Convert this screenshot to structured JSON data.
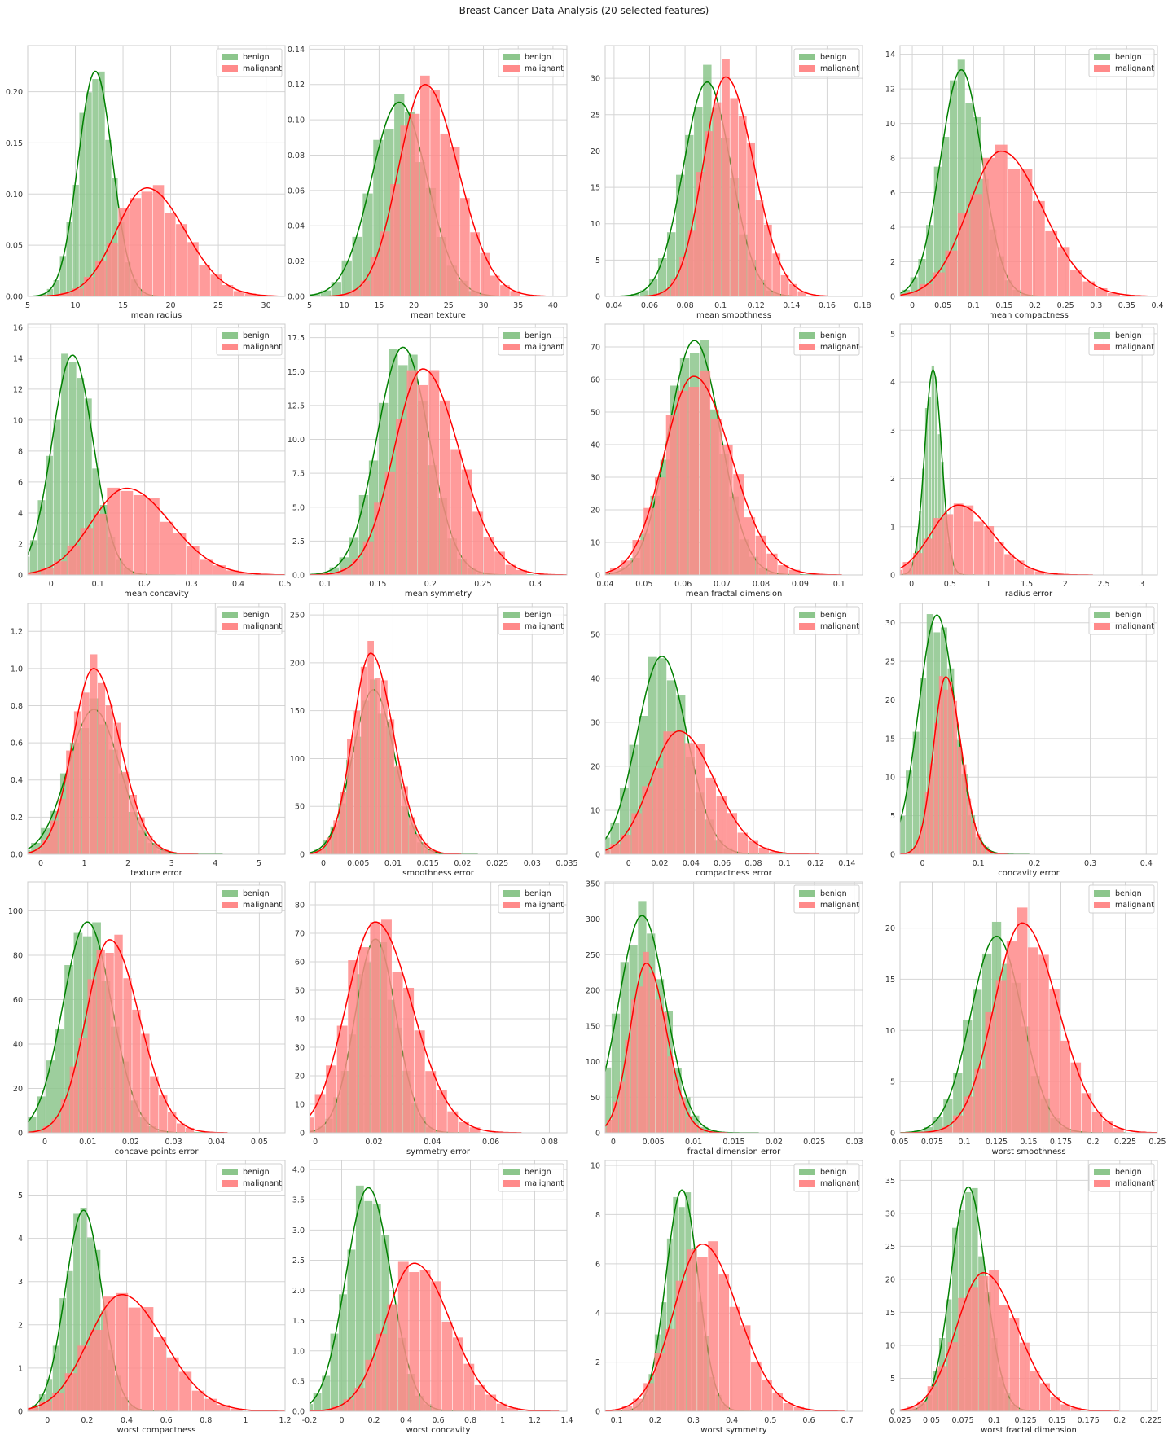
{
  "title": "Breast Cancer Data Analysis (20 selected features)",
  "legend": [
    "benign",
    "malignant"
  ],
  "colors": {
    "benign": "#008000",
    "malignant": "#ff0000",
    "benign_fill": "#8cc68c",
    "malignant_fill": "#ff8a8a",
    "grid": "#d5d5d5",
    "frame": "#cccccc"
  },
  "chart_data": [
    {
      "type": "bar",
      "xlabel": "mean radius",
      "xlim": [
        5,
        32
      ],
      "ylim": [
        0,
        0.245
      ],
      "xticks": [
        5,
        10,
        15,
        20,
        25,
        30
      ],
      "yticks": [
        0,
        0.05,
        0.1,
        0.15,
        0.2
      ],
      "ytick_labels": [
        "0.00",
        "0.05",
        "0.10",
        "0.15",
        "0.20"
      ],
      "legend_position": "top-right",
      "series": [
        {
          "name": "benign",
          "mean": 12.1,
          "sd": 1.8
        },
        {
          "name": "malignant",
          "mean": 17.5,
          "sd": 3.2
        }
      ],
      "peaks": [
        0.22,
        0.106
      ]
    },
    {
      "type": "bar",
      "xlabel": "mean texture",
      "xlim": [
        5,
        42
      ],
      "ylim": [
        0,
        0.142
      ],
      "xticks": [
        5,
        10,
        15,
        20,
        25,
        30,
        35,
        40
      ],
      "yticks": [
        0,
        0.02,
        0.04,
        0.06,
        0.08,
        0.1,
        0.12,
        0.14
      ],
      "ytick_labels": [
        "0.00",
        "0.02",
        "0.04",
        "0.06",
        "0.08",
        "0.10",
        "0.12",
        "0.14"
      ],
      "legend_position": "top-right",
      "series": [
        {
          "name": "benign",
          "mean": 17.9,
          "sd": 4.0
        },
        {
          "name": "malignant",
          "mean": 21.6,
          "sd": 3.8
        }
      ],
      "peaks": [
        0.11,
        0.12
      ]
    },
    {
      "type": "bar",
      "xlabel": "mean smoothness",
      "xlim": [
        0.035,
        0.18
      ],
      "ylim": [
        0,
        34.5
      ],
      "xticks": [
        0.04,
        0.06,
        0.08,
        0.1,
        0.12,
        0.14,
        0.16,
        0.18
      ],
      "yticks": [
        0,
        5,
        10,
        15,
        20,
        25,
        30
      ],
      "ytick_labels": [
        "0",
        "5",
        "10",
        "15",
        "20",
        "25",
        "30"
      ],
      "legend_position": "top-right",
      "series": [
        {
          "name": "benign",
          "mean": 0.0925,
          "sd": 0.0134
        },
        {
          "name": "malignant",
          "mean": 0.1029,
          "sd": 0.0126
        }
      ],
      "peaks": [
        29.5,
        30.2
      ]
    },
    {
      "type": "bar",
      "xlabel": "mean compactness",
      "xlim": [
        -0.02,
        0.4
      ],
      "ylim": [
        0,
        14.5
      ],
      "xticks": [
        0,
        0.05,
        0.1,
        0.15,
        0.2,
        0.25,
        0.3,
        0.35,
        0.4
      ],
      "yticks": [
        0,
        2,
        4,
        6,
        8,
        10,
        12,
        14
      ],
      "ytick_labels": [
        "0",
        "2",
        "4",
        "6",
        "8",
        "10",
        "12",
        "14"
      ],
      "legend_position": "top-right",
      "series": [
        {
          "name": "benign",
          "mean": 0.08,
          "sd": 0.034
        },
        {
          "name": "malignant",
          "mean": 0.145,
          "sd": 0.054
        }
      ],
      "peaks": [
        13.1,
        8.4
      ]
    },
    {
      "type": "bar",
      "xlabel": "mean concavity",
      "xlim": [
        -0.05,
        0.5
      ],
      "ylim": [
        0,
        16.2
      ],
      "xticks": [
        0,
        0.1,
        0.2,
        0.3,
        0.4,
        0.5
      ],
      "yticks": [
        0,
        2,
        4,
        6,
        8,
        10,
        12,
        14,
        16
      ],
      "ytick_labels": [
        "0",
        "2",
        "4",
        "6",
        "8",
        "10",
        "12",
        "14",
        "16"
      ],
      "legend_position": "top-right",
      "series": [
        {
          "name": "benign",
          "mean": 0.046,
          "sd": 0.044
        },
        {
          "name": "malignant",
          "mean": 0.161,
          "sd": 0.075
        }
      ],
      "peaks": [
        14.2,
        5.6
      ]
    },
    {
      "type": "bar",
      "xlabel": "mean symmetry",
      "xlim": [
        0.085,
        0.33
      ],
      "ylim": [
        0,
        18.5
      ],
      "xticks": [
        0.1,
        0.15,
        0.2,
        0.25,
        0.3
      ],
      "yticks": [
        0,
        2.5,
        5.0,
        7.5,
        10.0,
        12.5,
        15.0,
        17.5
      ],
      "ytick_labels": [
        "0.0",
        "2.5",
        "5.0",
        "7.5",
        "10.0",
        "12.5",
        "15.0",
        "17.5"
      ],
      "legend_position": "top-right",
      "series": [
        {
          "name": "benign",
          "mean": 0.174,
          "sd": 0.0248
        },
        {
          "name": "malignant",
          "mean": 0.193,
          "sd": 0.0276
        }
      ],
      "peaks": [
        16.8,
        15.2
      ]
    },
    {
      "type": "bar",
      "xlabel": "mean fractal dimension",
      "xlim": [
        0.04,
        0.106
      ],
      "ylim": [
        0,
        77
      ],
      "xticks": [
        0.04,
        0.05,
        0.06,
        0.07,
        0.08,
        0.09,
        0.1
      ],
      "yticks": [
        0,
        10,
        20,
        30,
        40,
        50,
        60,
        70
      ],
      "ytick_labels": [
        "0",
        "10",
        "20",
        "30",
        "40",
        "50",
        "60",
        "70"
      ],
      "legend_position": "top-right",
      "series": [
        {
          "name": "benign",
          "mean": 0.0629,
          "sd": 0.0067
        },
        {
          "name": "malignant",
          "mean": 0.0627,
          "sd": 0.0076
        }
      ],
      "peaks": [
        72,
        61
      ]
    },
    {
      "type": "bar",
      "xlabel": "radius error",
      "xlim": [
        -0.15,
        3.2
      ],
      "ylim": [
        0,
        5.2
      ],
      "xticks": [
        0,
        0.5,
        1.0,
        1.5,
        2.0,
        2.5,
        3.0
      ],
      "yticks": [
        0,
        1,
        2,
        3,
        4,
        5
      ],
      "ytick_labels": [
        "0",
        "1",
        "2",
        "3",
        "4",
        "5"
      ],
      "legend_position": "top-right",
      "series": [
        {
          "name": "benign",
          "mean": 0.28,
          "sd": 0.11
        },
        {
          "name": "malignant",
          "mean": 0.61,
          "sd": 0.35
        }
      ],
      "peaks": [
        4.25,
        1.45
      ]
    },
    {
      "type": "bar",
      "xlabel": "texture error",
      "xlim": [
        -0.3,
        5.6
      ],
      "ylim": [
        0,
        1.35
      ],
      "xticks": [
        0,
        1,
        2,
        3,
        4,
        5
      ],
      "yticks": [
        0,
        0.2,
        0.4,
        0.6,
        0.8,
        1.0,
        1.2
      ],
      "ytick_labels": [
        "0.0",
        "0.2",
        "0.4",
        "0.6",
        "0.8",
        "1.0",
        "1.2"
      ],
      "legend_position": "top-right",
      "series": [
        {
          "name": "benign",
          "mean": 1.22,
          "sd": 0.59
        },
        {
          "name": "malignant",
          "mean": 1.21,
          "sd": 0.48
        }
      ],
      "peaks": [
        0.78,
        1.0
      ]
    },
    {
      "type": "bar",
      "xlabel": "smoothness error",
      "xlim": [
        -0.002,
        0.035
      ],
      "ylim": [
        0,
        262
      ],
      "xticks": [
        0,
        0.005,
        0.01,
        0.015,
        0.02,
        0.025,
        0.03,
        0.035
      ],
      "yticks": [
        0,
        50,
        100,
        150,
        200,
        250
      ],
      "ytick_labels": [
        "0",
        "50",
        "100",
        "150",
        "200",
        "250"
      ],
      "legend_position": "top-right",
      "series": [
        {
          "name": "benign",
          "mean": 0.0072,
          "sd": 0.003
        },
        {
          "name": "malignant",
          "mean": 0.0068,
          "sd": 0.0026
        }
      ],
      "peaks": [
        172,
        210
      ]
    },
    {
      "type": "bar",
      "xlabel": "compactness error",
      "xlim": [
        -0.015,
        0.15
      ],
      "ylim": [
        0,
        57
      ],
      "xticks": [
        0,
        0.02,
        0.04,
        0.06,
        0.08,
        0.1,
        0.12,
        0.14
      ],
      "yticks": [
        0,
        10,
        20,
        30,
        40,
        50
      ],
      "ytick_labels": [
        "0",
        "10",
        "20",
        "30",
        "40",
        "50"
      ],
      "legend_position": "top-right",
      "series": [
        {
          "name": "benign",
          "mean": 0.0214,
          "sd": 0.016
        },
        {
          "name": "malignant",
          "mean": 0.0323,
          "sd": 0.018
        }
      ],
      "peaks": [
        45,
        28
      ]
    },
    {
      "type": "bar",
      "xlabel": "concavity error",
      "xlim": [
        -0.04,
        0.42
      ],
      "ylim": [
        0,
        32.5
      ],
      "xticks": [
        0,
        0.1,
        0.2,
        0.3,
        0.4
      ],
      "yticks": [
        0,
        5,
        10,
        15,
        20,
        25,
        30
      ],
      "ytick_labels": [
        "0",
        "5",
        "10",
        "15",
        "20",
        "25",
        "30"
      ],
      "legend_position": "top-right",
      "series": [
        {
          "name": "benign",
          "mean": 0.026,
          "sd": 0.033
        },
        {
          "name": "malignant",
          "mean": 0.0418,
          "sd": 0.022
        }
      ],
      "peaks": [
        31,
        23
      ]
    },
    {
      "type": "bar",
      "xlabel": "concave points error",
      "xlim": [
        -0.004,
        0.056
      ],
      "ylim": [
        0,
        113
      ],
      "xticks": [
        0,
        0.01,
        0.02,
        0.03,
        0.04,
        0.05
      ],
      "yticks": [
        0,
        20,
        40,
        60,
        80,
        100
      ],
      "ytick_labels": [
        "0",
        "20",
        "40",
        "60",
        "80",
        "100"
      ],
      "legend_position": "top-right",
      "series": [
        {
          "name": "benign",
          "mean": 0.0099,
          "sd": 0.0057
        },
        {
          "name": "malignant",
          "mean": 0.0151,
          "sd": 0.0055
        }
      ],
      "peaks": [
        95,
        87
      ]
    },
    {
      "type": "bar",
      "xlabel": "symmetry error",
      "xlim": [
        -0.002,
        0.086
      ],
      "ylim": [
        0,
        88
      ],
      "xticks": [
        0,
        0.02,
        0.04,
        0.06,
        0.08
      ],
      "yticks": [
        0,
        10,
        20,
        30,
        40,
        50,
        60,
        70,
        80
      ],
      "ytick_labels": [
        "0",
        "10",
        "20",
        "30",
        "40",
        "50",
        "60",
        "70",
        "80"
      ],
      "legend_position": "top-right",
      "series": [
        {
          "name": "benign",
          "mean": 0.0206,
          "sd": 0.007
        },
        {
          "name": "malignant",
          "mean": 0.0205,
          "sd": 0.01
        }
      ],
      "peaks": [
        68,
        74
      ]
    },
    {
      "type": "bar",
      "xlabel": "fractal dimension error",
      "xlim": [
        -0.001,
        0.031
      ],
      "ylim": [
        0,
        352
      ],
      "xticks": [
        0,
        0.005,
        0.01,
        0.015,
        0.02,
        0.025,
        0.03
      ],
      "yticks": [
        0,
        50,
        100,
        150,
        200,
        250,
        300,
        350
      ],
      "ytick_labels": [
        "0",
        "50",
        "100",
        "150",
        "200",
        "250",
        "300",
        "350"
      ],
      "legend_position": "top-right",
      "series": [
        {
          "name": "benign",
          "mean": 0.0036,
          "sd": 0.0029
        },
        {
          "name": "malignant",
          "mean": 0.0041,
          "sd": 0.002
        }
      ],
      "peaks": [
        305,
        238
      ]
    },
    {
      "type": "bar",
      "xlabel": "worst smoothness",
      "xlim": [
        0.05,
        0.25
      ],
      "ylim": [
        0,
        24.5
      ],
      "xticks": [
        0.05,
        0.075,
        0.1,
        0.125,
        0.15,
        0.175,
        0.2,
        0.225,
        0.25
      ],
      "yticks": [
        0,
        5,
        10,
        15,
        20
      ],
      "ytick_labels": [
        "0",
        "5",
        "10",
        "15",
        "20"
      ],
      "legend_position": "top-right",
      "series": [
        {
          "name": "benign",
          "mean": 0.125,
          "sd": 0.02
        },
        {
          "name": "malignant",
          "mean": 0.145,
          "sd": 0.022
        }
      ],
      "peaks": [
        19.2,
        20.5
      ]
    },
    {
      "type": "bar",
      "xlabel": "worst compactness",
      "xlim": [
        -0.1,
        1.2
      ],
      "ylim": [
        0,
        5.8
      ],
      "xticks": [
        0,
        0.2,
        0.4,
        0.6,
        0.8,
        1.0,
        1.2
      ],
      "yticks": [
        0,
        1,
        2,
        3,
        4,
        5
      ],
      "ytick_labels": [
        "0",
        "1",
        "2",
        "3",
        "4",
        "5"
      ],
      "legend_position": "top-right",
      "series": [
        {
          "name": "benign",
          "mean": 0.182,
          "sd": 0.092
        },
        {
          "name": "malignant",
          "mean": 0.375,
          "sd": 0.17
        }
      ],
      "peaks": [
        4.65,
        2.7
      ]
    },
    {
      "type": "bar",
      "xlabel": "worst concavity",
      "xlim": [
        -0.2,
        1.4
      ],
      "ylim": [
        0,
        4.15
      ],
      "xticks": [
        -0.2,
        0,
        0.2,
        0.4,
        0.6,
        0.8,
        1.0,
        1.2,
        1.4
      ],
      "yticks": [
        0,
        0.5,
        1.0,
        1.5,
        2.0,
        2.5,
        3.0,
        3.5,
        4.0
      ],
      "ytick_labels": [
        "0.0",
        "0.5",
        "1.0",
        "1.5",
        "2.0",
        "2.5",
        "3.0",
        "3.5",
        "4.0"
      ],
      "legend_position": "top-right",
      "series": [
        {
          "name": "benign",
          "mean": 0.166,
          "sd": 0.14
        },
        {
          "name": "malignant",
          "mean": 0.451,
          "sd": 0.18
        }
      ],
      "peaks": [
        3.7,
        2.45
      ]
    },
    {
      "type": "bar",
      "xlabel": "worst symmetry",
      "xlim": [
        0.07,
        0.74
      ],
      "ylim": [
        0,
        10.2
      ],
      "xticks": [
        0.1,
        0.2,
        0.3,
        0.4,
        0.5,
        0.6,
        0.7
      ],
      "yticks": [
        0,
        2,
        4,
        6,
        8,
        10
      ],
      "ytick_labels": [
        "0",
        "2",
        "4",
        "6",
        "8",
        "10"
      ],
      "legend_position": "top-right",
      "series": [
        {
          "name": "benign",
          "mean": 0.27,
          "sd": 0.042
        },
        {
          "name": "malignant",
          "mean": 0.323,
          "sd": 0.074
        }
      ],
      "peaks": [
        9.0,
        6.8
      ]
    },
    {
      "type": "bar",
      "xlabel": "worst fractal dimension",
      "xlim": [
        0.025,
        0.23
      ],
      "ylim": [
        0,
        38
      ],
      "xticks": [
        0.025,
        0.05,
        0.075,
        0.1,
        0.125,
        0.15,
        0.175,
        0.2,
        0.225
      ],
      "yticks": [
        0,
        5,
        10,
        15,
        20,
        25,
        30,
        35
      ],
      "ytick_labels": [
        "0",
        "5",
        "10",
        "15",
        "20",
        "25",
        "30",
        "35"
      ],
      "legend_position": "top-right",
      "series": [
        {
          "name": "benign",
          "mean": 0.0794,
          "sd": 0.0138
        },
        {
          "name": "malignant",
          "mean": 0.0915,
          "sd": 0.0216
        }
      ],
      "peaks": [
        34,
        21
      ]
    }
  ]
}
